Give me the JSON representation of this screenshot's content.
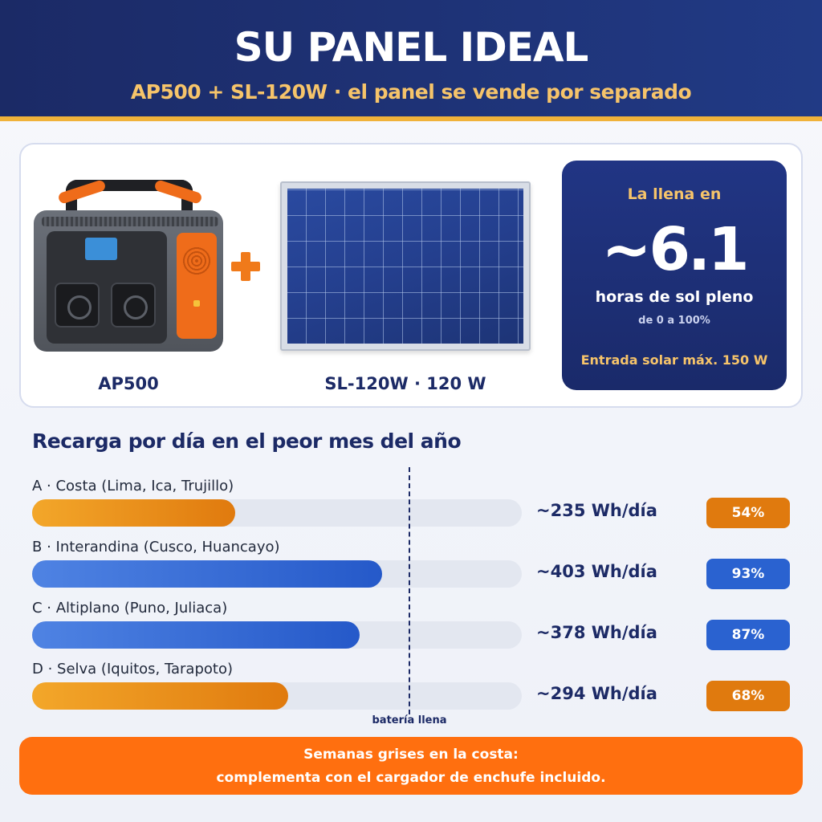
{
  "header": {
    "title": "SU PANEL IDEAL",
    "subtitle": "AP500 + SL-120W · el panel se vende por separado"
  },
  "products": {
    "station_label": "AP500",
    "panel_label": "SL-120W · 120 W"
  },
  "fill_box": {
    "top": "La llena en",
    "hours_value": "~6.1",
    "hours_label": "horas de sol pleno",
    "range": "de 0 a 100%",
    "max_input": "Entrada solar máx. 150 W"
  },
  "colors": {
    "orange_start": "#f3a72a",
    "orange_end": "#e07a0e",
    "blue_start": "#4f83e3",
    "blue_end": "#2559c9",
    "pct_orange": "#e07a0e",
    "pct_blue": "#2a62d0"
  },
  "chart_data": {
    "type": "bar",
    "orientation": "horizontal",
    "title": "Recarga por día en el peor mes del año",
    "unit": "Wh/día",
    "reference_line": {
      "label": "batería llena",
      "value_percent": 100
    },
    "rows": [
      {
        "label": "A · Costa (Lima, Ica, Trujillo)",
        "wh": 235,
        "wh_text": "~235 Wh/día",
        "percent": 54,
        "percent_text": "54%",
        "color": "orange"
      },
      {
        "label": "B · Interandina (Cusco, Huancayo)",
        "wh": 403,
        "wh_text": "~403 Wh/día",
        "percent": 93,
        "percent_text": "93%",
        "color": "blue"
      },
      {
        "label": "C · Altiplano (Puno, Juliaca)",
        "wh": 378,
        "wh_text": "~378 Wh/día",
        "percent": 87,
        "percent_text": "87%",
        "color": "blue"
      },
      {
        "label": "D · Selva (Iquitos, Tarapoto)",
        "wh": 294,
        "wh_text": "~294 Wh/día",
        "percent": 68,
        "percent_text": "68%",
        "color": "orange"
      }
    ]
  },
  "footer": {
    "line1": "Semanas grises en la costa:",
    "line2": "complementa con el cargador de enchufe incluido."
  }
}
